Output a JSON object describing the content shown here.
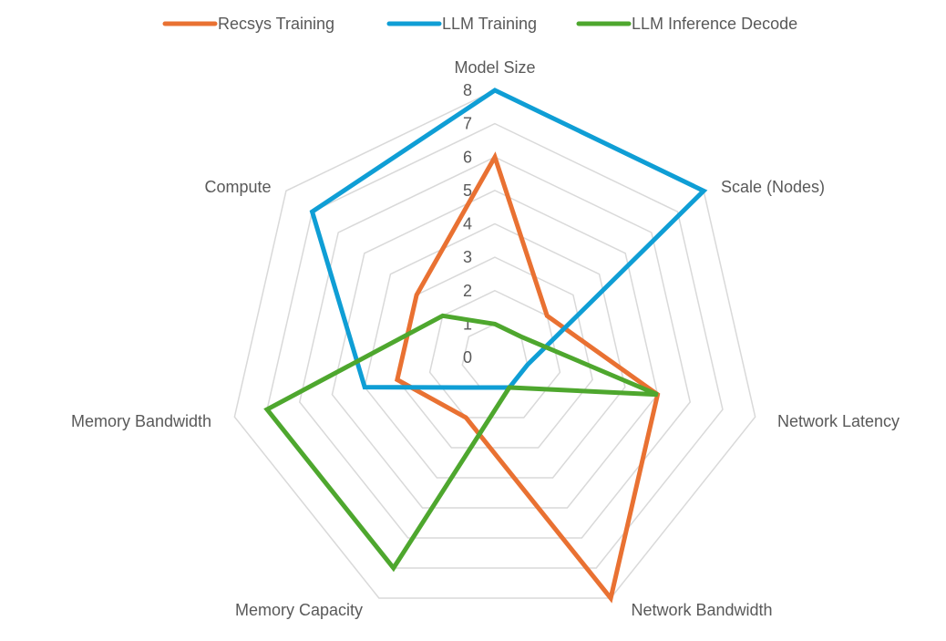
{
  "chart_data": {
    "type": "radar",
    "title": "",
    "categories": [
      "Model Size",
      "Scale (Nodes)",
      "Network Latency",
      "Network Bandwidth",
      "Memory Capacity",
      "Memory Bandwidth",
      "Compute"
    ],
    "series": [
      {
        "name": "Recsys Training",
        "color": "#E97132",
        "values": [
          6,
          2,
          5,
          8,
          2,
          3,
          3
        ]
      },
      {
        "name": "LLM Training",
        "color": "#0F9ED5",
        "values": [
          8,
          8,
          1,
          1,
          1,
          4,
          7
        ]
      },
      {
        "name": "LLM Inference Decode",
        "color": "#4EA72E",
        "values": [
          1,
          1,
          5,
          1,
          7,
          7,
          2
        ]
      }
    ],
    "rlim": [
      0,
      8
    ],
    "ticks": [
      "0",
      "1",
      "2",
      "3",
      "4",
      "5",
      "6",
      "7",
      "8"
    ],
    "grid": true,
    "grid_color": "#D9D9D9",
    "legend_position": "top"
  }
}
